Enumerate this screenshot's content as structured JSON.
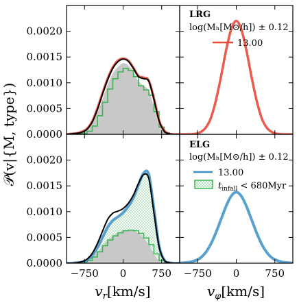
{
  "chart_data": {
    "type": "line",
    "ylabel": "𝒫(v|{M, type})",
    "yticks": [
      "0.0000",
      "0.0005",
      "0.0010",
      "0.0015",
      "0.0020"
    ],
    "ylim": [
      0,
      0.0025
    ],
    "xlim": [
      -1100,
      1100
    ],
    "xticks": [
      -750,
      0,
      750
    ],
    "xtick_labels": [
      "−750",
      "0",
      "750"
    ],
    "xlabels": [
      "v_r [km/s]",
      "v_φ [km/s]"
    ],
    "xlabel_left": {
      "main": "v",
      "sub": "r",
      "unit": "[km/s]"
    },
    "xlabel_right": {
      "main": "v",
      "sub": "φ",
      "unit": "[km/s]"
    },
    "colors": {
      "lrg": "#e8483a",
      "elg": "#3d8fc6",
      "infall": "#3cb454",
      "shade": "#c8c8c8",
      "black": "#000000"
    },
    "panels": [
      {
        "id": "lrg-vr",
        "x": [
          -1100,
          -1000,
          -900,
          -800,
          -700,
          -600,
          -500,
          -400,
          -300,
          -200,
          -100,
          0,
          100,
          200,
          300,
          400,
          500,
          600,
          700,
          800,
          900,
          1000,
          1100
        ],
        "gray": [
          0,
          0,
          1e-05,
          3e-05,
          8e-05,
          0.0002,
          0.00042,
          0.00068,
          0.00096,
          0.00118,
          0.00131,
          0.00138,
          0.00134,
          0.00121,
          0.00103,
          0.00094,
          0.00085,
          0.00052,
          0.00018,
          4e-05,
          1e-05,
          0,
          0
        ],
        "black": [
          0,
          1e-05,
          2e-05,
          4e-05,
          0.0001,
          0.00024,
          0.00048,
          0.00078,
          0.00106,
          0.00128,
          0.00141,
          0.00146,
          0.00142,
          0.00128,
          0.00112,
          0.00108,
          0.00103,
          0.00068,
          0.00026,
          6e-05,
          1e-05,
          0,
          0
        ],
        "red": [
          0,
          1e-05,
          2e-05,
          5e-05,
          0.00011,
          0.00025,
          0.0005,
          0.0008,
          0.00108,
          0.0013,
          0.00143,
          0.00147,
          0.00143,
          0.00129,
          0.00113,
          0.0011,
          0.00104,
          0.00069,
          0.00027,
          7e-05,
          1e-05,
          0,
          0
        ],
        "green": [
          0,
          0,
          1e-05,
          2e-05,
          6e-05,
          0.00016,
          0.00036,
          0.00062,
          0.00088,
          0.00108,
          0.00121,
          0.00128,
          0.00124,
          0.00112,
          0.00094,
          0.00086,
          0.00076,
          0.00044,
          0.00014,
          3e-05,
          0,
          0,
          0
        ]
      },
      {
        "id": "lrg-vphi",
        "x": [
          -1100,
          -1000,
          -900,
          -800,
          -700,
          -600,
          -500,
          -400,
          -300,
          -200,
          -100,
          0,
          100,
          200,
          300,
          400,
          500,
          600,
          700,
          800,
          900,
          1000,
          1100
        ],
        "red": [
          0,
          0,
          0,
          1e-05,
          4e-05,
          0.00012,
          0.0003,
          0.00064,
          0.0011,
          0.00162,
          0.00203,
          0.0022,
          0.00203,
          0.00162,
          0.0011,
          0.00064,
          0.0003,
          0.00012,
          4e-05,
          1e-05,
          0,
          0,
          0
        ]
      },
      {
        "id": "elg-vr",
        "x": [
          -1100,
          -1000,
          -900,
          -800,
          -700,
          -600,
          -500,
          -400,
          -300,
          -200,
          -100,
          0,
          100,
          200,
          300,
          400,
          500,
          600,
          700,
          800,
          900,
          1000,
          1100
        ],
        "gray": [
          0,
          0,
          1e-05,
          2e-05,
          5e-05,
          0.00012,
          0.00022,
          0.00034,
          0.00045,
          0.00053,
          0.00059,
          0.00063,
          0.00064,
          0.00063,
          0.00058,
          0.00049,
          0.00036,
          0.00018,
          5e-05,
          1e-05,
          0,
          0,
          0
        ],
        "black": [
          0,
          0,
          1e-05,
          3e-05,
          8e-05,
          0.00019,
          0.00038,
          0.00062,
          0.00085,
          0.00097,
          0.00101,
          0.00106,
          0.00116,
          0.00132,
          0.00155,
          0.00172,
          0.00164,
          0.00098,
          0.00032,
          6e-05,
          1e-05,
          0,
          0
        ],
        "blue": [
          0,
          0,
          1e-05,
          2e-05,
          6e-05,
          0.00015,
          0.0003,
          0.0005,
          0.0007,
          0.00083,
          0.0009,
          0.00098,
          0.0011,
          0.00127,
          0.00152,
          0.00175,
          0.00172,
          0.00105,
          0.00034,
          6e-05,
          1e-05,
          0,
          0
        ],
        "green": [
          0,
          0,
          1e-05,
          2e-05,
          5e-05,
          0.00012,
          0.00022,
          0.00034,
          0.00045,
          0.00053,
          0.00059,
          0.00063,
          0.00064,
          0.00063,
          0.00058,
          0.00049,
          0.00036,
          0.00018,
          5e-05,
          1e-05,
          0,
          0,
          0
        ]
      },
      {
        "id": "elg-vphi",
        "x": [
          -1100,
          -1000,
          -900,
          -800,
          -700,
          -600,
          -500,
          -400,
          -300,
          -200,
          -100,
          0,
          100,
          200,
          300,
          400,
          500,
          600,
          700,
          800,
          900,
          1000,
          1100
        ],
        "blue": [
          0,
          1e-05,
          2e-05,
          5e-05,
          0.0001,
          0.0002,
          0.00036,
          0.00058,
          0.00084,
          0.0011,
          0.0013,
          0.00138,
          0.0013,
          0.0011,
          0.00084,
          0.00058,
          0.00036,
          0.0002,
          0.0001,
          5e-05,
          2e-05,
          1e-05,
          0
        ]
      }
    ],
    "legend_lrg": {
      "title": "LRG",
      "range": "log(M_h[M_⊙/h]) ± 0.12",
      "entry": "13.00"
    },
    "legend_elg": {
      "title": "ELG",
      "range": "log(M_h[M_⊙/h]) ± 0.12",
      "entry": "13.00",
      "infall": "t_infall < 680Myr"
    },
    "lrg_range_text": "log(Mₕ[M⊙/h]) ± 0.12",
    "elg_range_text": "log(Mₕ[M⊙/h]) ± 0.12",
    "infall_label": {
      "sym": "t",
      "sub": "infall",
      "rest": " < 680Myr"
    }
  }
}
